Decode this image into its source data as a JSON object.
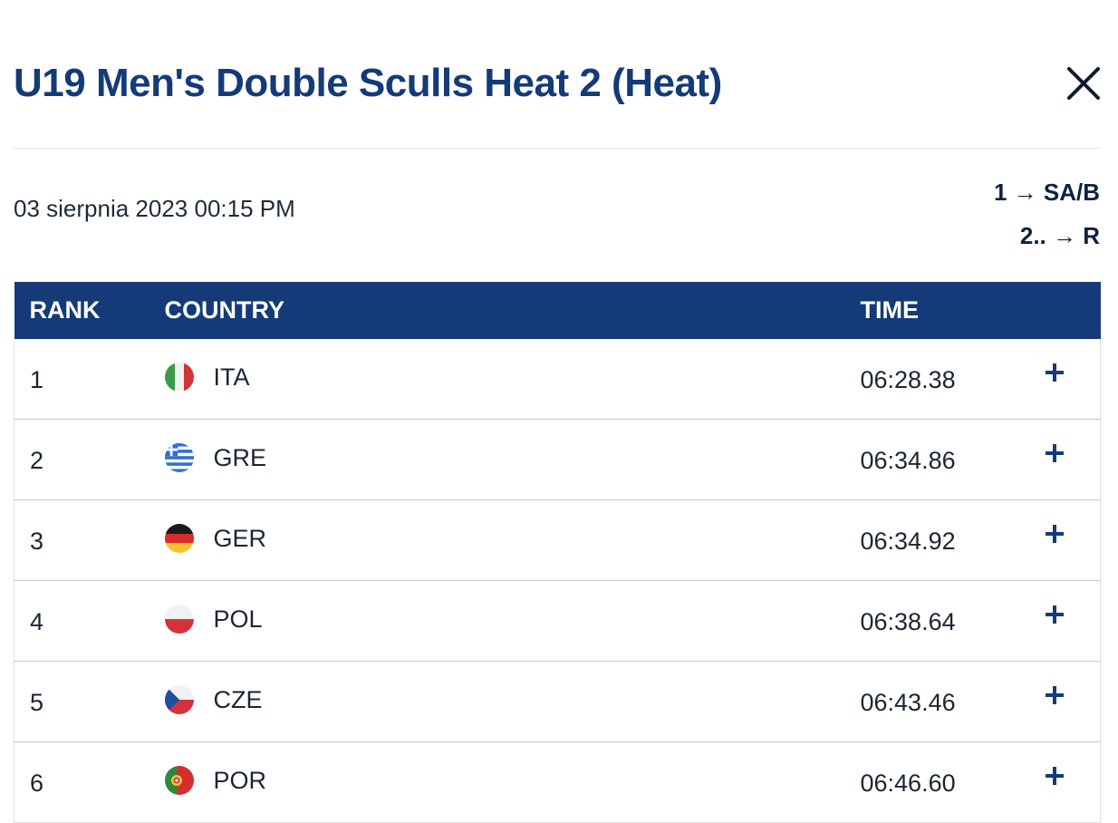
{
  "header": {
    "title": "U19 Men's Double Sculls Heat 2 (Heat)",
    "close_icon": "close-icon"
  },
  "race": {
    "datetime": "03 sierpnia 2023 00:15 PM",
    "progression": [
      "1 → SA/B",
      "2.. → R"
    ]
  },
  "table": {
    "columns": {
      "rank": "RANK",
      "country": "COUNTRY",
      "time": "TIME"
    },
    "rows": [
      {
        "rank": "1",
        "country": "ITA",
        "flag": "italy-flag-icon",
        "time": "06:28.38"
      },
      {
        "rank": "2",
        "country": "GRE",
        "flag": "greece-flag-icon",
        "time": "06:34.86"
      },
      {
        "rank": "3",
        "country": "GER",
        "flag": "germany-flag-icon",
        "time": "06:34.92"
      },
      {
        "rank": "4",
        "country": "POL",
        "flag": "poland-flag-icon",
        "time": "06:38.64"
      },
      {
        "rank": "5",
        "country": "CZE",
        "flag": "czech-flag-icon",
        "time": "06:43.46"
      },
      {
        "rank": "6",
        "country": "POR",
        "flag": "portugal-flag-icon",
        "time": "06:46.60"
      }
    ],
    "expand_icon": "plus-icon"
  },
  "colors": {
    "primary": "#143b78",
    "text": "#1b2533",
    "row_border": "#c4c9cf"
  }
}
